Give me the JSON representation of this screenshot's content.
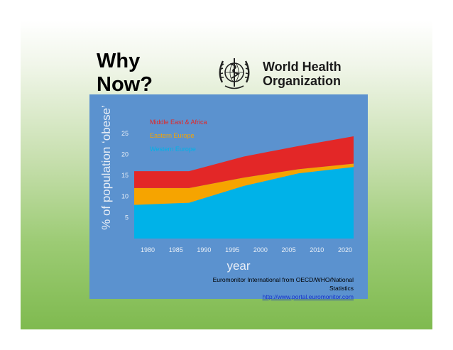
{
  "slide": {
    "title_lines": [
      "Why",
      "Now?"
    ],
    "organization_lines": [
      "World Health",
      "Organization"
    ],
    "source_text": "Euromonitor International from OECD/WHO/National Statistics",
    "source_url": "http://www.portal.euromonitor.com"
  },
  "chart_data": {
    "type": "area",
    "stacked": true,
    "title": "",
    "xlabel": "year",
    "ylabel": "% of population ‘obese’",
    "x": [
      1980,
      1990,
      2000,
      2010,
      2020
    ],
    "x_ticks": [
      "1980",
      "1985",
      "1990",
      "1995",
      "2000",
      "2005",
      "2010",
      "2020"
    ],
    "y_ticks": [
      5,
      10,
      15,
      20,
      25
    ],
    "xlim": [
      1980,
      2020
    ],
    "ylim": [
      0,
      27
    ],
    "legend_position": "top-left",
    "series": [
      {
        "name": "Western Europe",
        "color": "#00b2e8",
        "values": [
          8,
          8.5,
          12.5,
          15.5,
          17
        ]
      },
      {
        "name": "Eastern Europe",
        "color": "#f6a400",
        "values": [
          4,
          3.5,
          2,
          1,
          0.8
        ]
      },
      {
        "name": "Middle East & Africa",
        "color": "#e32727",
        "values": [
          4,
          4,
          5,
          5.5,
          6.5
        ]
      }
    ]
  }
}
